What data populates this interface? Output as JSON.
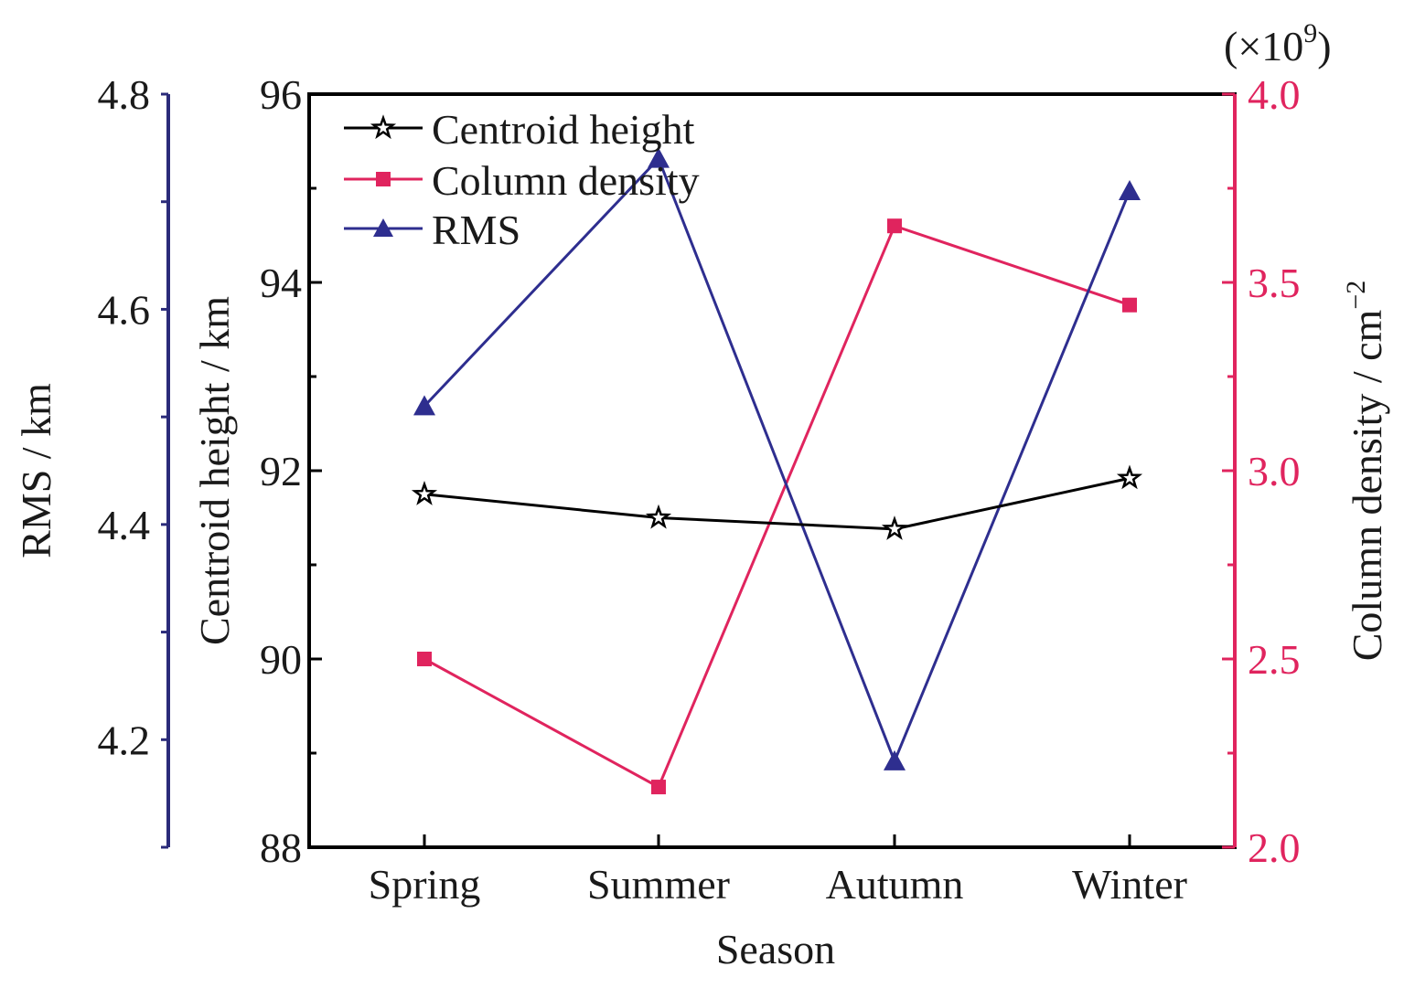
{
  "chart_data": {
    "type": "line",
    "categories": [
      "Spring",
      "Summer",
      "Autumn",
      "Winter"
    ],
    "xlabel": "Season",
    "legend_position": "top-left",
    "grid": false,
    "axes": {
      "left_outer": {
        "label": "RMS / km",
        "range": [
          4.1,
          4.8
        ],
        "ticks": [
          "4.2",
          "4.4",
          "4.6",
          "4.8"
        ],
        "color": "#2b2b7a"
      },
      "left_inner": {
        "label": "Centroid height / km",
        "range": [
          88,
          96
        ],
        "ticks": [
          "88",
          "90",
          "92",
          "94",
          "96"
        ],
        "color": "#000000"
      },
      "right": {
        "label": "Column density / cm",
        "label_superscript": "−2",
        "multiplier_prefix": "(×10",
        "multiplier_exponent": "9",
        "multiplier_suffix": ")",
        "range": [
          2.0,
          4.0
        ],
        "ticks": [
          "2.0",
          "2.5",
          "3.0",
          "3.5",
          "4.0"
        ],
        "color": "#e0245e"
      }
    },
    "series": [
      {
        "name": "Centroid height",
        "axis": "left_inner",
        "marker": "star",
        "color": "#000000",
        "values": [
          91.75,
          91.5,
          91.38,
          91.92
        ]
      },
      {
        "name": "Column density",
        "axis": "right",
        "marker": "square",
        "color": "#e0245e",
        "values": [
          2.5,
          2.16,
          3.65,
          3.44
        ]
      },
      {
        "name": "RMS",
        "axis": "left_outer",
        "marker": "triangle",
        "color": "#2e2e8f",
        "values": [
          4.51,
          4.74,
          4.18,
          4.71
        ]
      }
    ]
  }
}
